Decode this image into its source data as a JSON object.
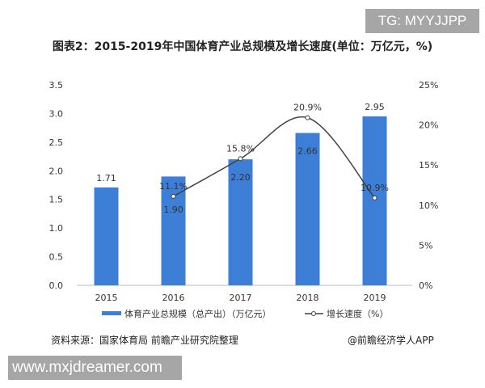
{
  "watermark_top": "TG: MYYJJPP",
  "watermark_bottom": "www.mxjdreamer.com",
  "source": "资料来源：国家体育局 前瞻产业研究院整理",
  "credit": "@前瞻经济学人APP",
  "chart_data": {
    "type": "bar+line",
    "title": "图表2：2015-2019年中国体育产业总规模及增长速度(单位：万亿元，%)",
    "categories": [
      "2015",
      "2016",
      "2017",
      "2018",
      "2019"
    ],
    "series": [
      {
        "name": "体育产业总规模（总产出）（万亿元）",
        "type": "bar",
        "axis": "left",
        "values": [
          1.71,
          1.9,
          2.2,
          2.66,
          2.95
        ],
        "labels": [
          "1.71",
          "1.90",
          "2.20",
          "2.66",
          "2.95"
        ],
        "color": "#3d7fd6"
      },
      {
        "name": "增长速度（%）",
        "type": "line",
        "axis": "right",
        "values": [
          null,
          11.1,
          15.8,
          20.9,
          10.9
        ],
        "labels": [
          "",
          "11.1%",
          "15.8%",
          "20.9%",
          "10.9%"
        ],
        "color": "#404040"
      }
    ],
    "left_axis": {
      "range": [
        0,
        3.5
      ],
      "ticks": [
        "0.0",
        "0.5",
        "1.0",
        "1.5",
        "2.0",
        "2.5",
        "3.0",
        "3.5"
      ]
    },
    "right_axis": {
      "range": [
        0,
        25
      ],
      "ticks": [
        "0%",
        "5%",
        "10%",
        "15%",
        "20%",
        "25%"
      ]
    },
    "grid": false,
    "legend": "bottom"
  }
}
